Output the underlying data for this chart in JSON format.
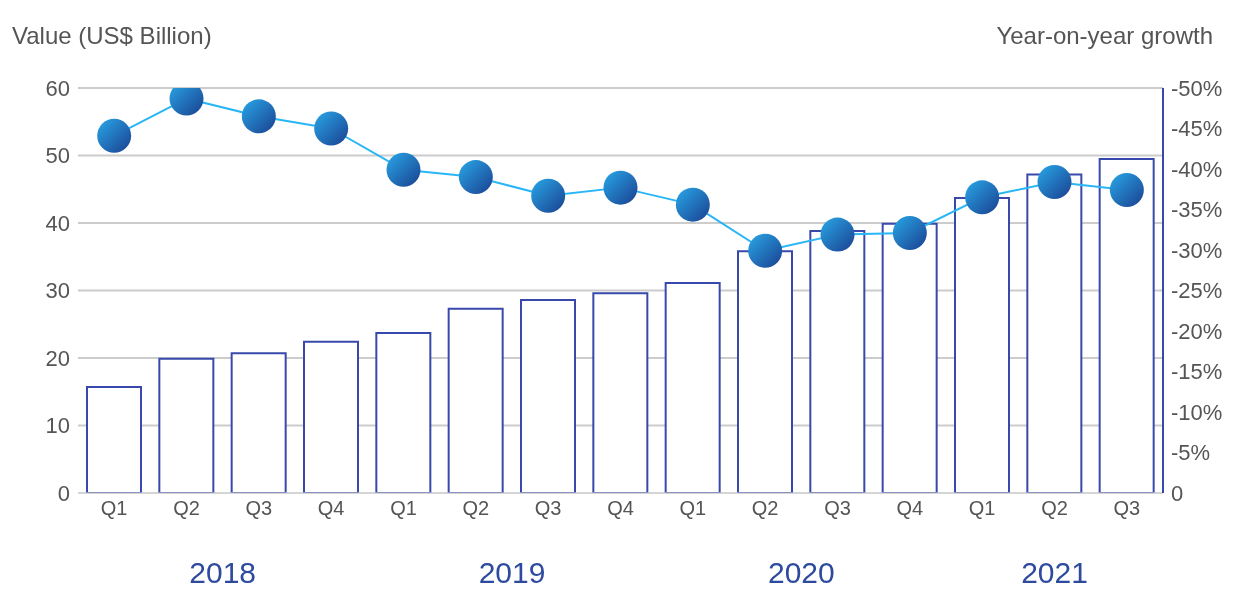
{
  "chart_data": {
    "type": "bar",
    "ylabel": "Value (US$ Billion)",
    "y2label": "Year-on-year growth",
    "categories": [
      "Q1",
      "Q2",
      "Q3",
      "Q4",
      "Q1",
      "Q2",
      "Q3",
      "Q4",
      "Q1",
      "Q2",
      "Q3",
      "Q4",
      "Q1",
      "Q2",
      "Q3"
    ],
    "series": [
      {
        "color": "#3949ab",
        "values": [
          15.7,
          19.9,
          20.7,
          22.4,
          23.7,
          27.3,
          28.6,
          29.6,
          31.1,
          35.8,
          38.8,
          39.9,
          43.7,
          47.2,
          49.5
        ]
      },
      {
        "type": "line",
        "axis": "y2",
        "color": "#29b6f6",
        "marker": "circle",
        "values": [
          -44.1,
          -48.7,
          -46.5,
          -45.0,
          -39.9,
          -39.0,
          -36.7,
          -37.7,
          -35.6,
          -29.9,
          -31.9,
          -32.1,
          -36.5,
          -38.4,
          -37.4
        ]
      }
    ],
    "ylim": [
      0,
      60
    ],
    "yticks": [
      0,
      10,
      20,
      30,
      40,
      50,
      60
    ],
    "y2lim": [
      0,
      -50
    ],
    "y2ticks": [
      0,
      {
        "value": -5,
        "label": "-5%"
      },
      {
        "value": -10,
        "label": "-10%"
      },
      {
        "value": -15,
        "label": "-15%"
      },
      {
        "value": -20,
        "label": "-20%"
      },
      {
        "value": -25,
        "label": "-25%"
      },
      {
        "value": -30,
        "label": "-30%"
      },
      {
        "value": -35,
        "label": "-35%"
      },
      {
        "value": -40,
        "label": "-40%"
      },
      {
        "value": -45,
        "label": "-45%"
      },
      {
        "value": -50,
        "label": "-50%"
      }
    ],
    "grid": "y",
    "annotations": [
      "2018",
      "2019",
      "2020",
      "2021"
    ]
  }
}
